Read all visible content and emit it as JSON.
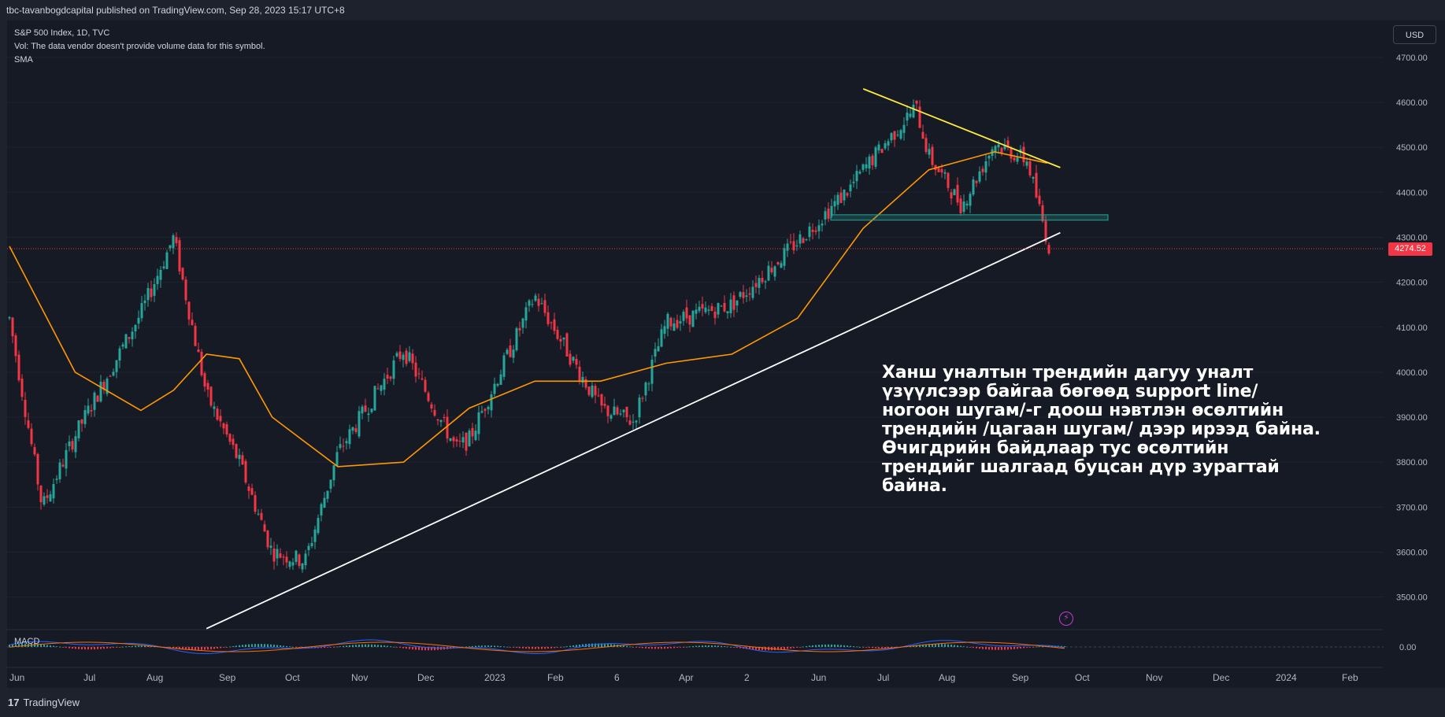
{
  "header": {
    "published": "tbc-tavanbogdcapital published on TradingView.com, Sep 28, 2023 15:17 UTC+8"
  },
  "legend": {
    "symbol": "S&P 500 Index, 1D, TVC",
    "volume_note": "Vol: The data vendor doesn't provide volume data for this symbol.",
    "indicator": "SMA"
  },
  "currency_button": "USD",
  "macd_label": "MACD",
  "last_price": "4274.52",
  "annotation": "Ханш уналтын трендийн дагуу уналт үзүүлсээр байгаа бөгөөд support line/ногоон шугам/-г доош нэвтлэн өсөлтийн трендийн /цагаан шугам/ дээр ирээд байна. Өчигдрийн байдлаар тус өсөлтийн трендийг шалгаад буцсан дүр зурагтай байна.",
  "footer": {
    "brand": "TradingView"
  },
  "colors": {
    "up": "#26a69a",
    "down": "#f23645",
    "sma": "#ff9800",
    "trend_down": "#ffeb3b",
    "trend_up": "#ffffff",
    "support": "#26a69a",
    "macd": "#2962ff",
    "signal": "#ff6d00"
  },
  "chart_data": {
    "type": "candlestick",
    "symbol": "S&P 500 Index",
    "interval": "1D",
    "ylim": [
      3450,
      4750
    ],
    "y_ticks": [
      "4700.00",
      "4600.00",
      "4500.00",
      "4400.00",
      "4300.00",
      "4200.00",
      "4100.00",
      "4000.00",
      "3900.00",
      "3800.00",
      "3700.00",
      "3600.00",
      "3500.00"
    ],
    "x_ticks": [
      "Jun",
      "Jul",
      "Aug",
      "Sep",
      "Oct",
      "Nov",
      "Dec",
      "2023",
      "Feb",
      "6",
      "Apr",
      "2",
      "Jun",
      "Jul",
      "Aug",
      "Sep",
      "Oct",
      "Nov",
      "Dec",
      "2024",
      "Feb"
    ],
    "close_path": [
      [
        "Jun 2022",
        4120
      ],
      [
        "mid Jun 2022",
        3700
      ],
      [
        "Jul 2022",
        3860
      ],
      [
        "Aug 2022",
        4130
      ],
      [
        "mid Aug 2022",
        4300
      ],
      [
        "Sep 2022",
        3950
      ],
      [
        "mid Sep 2022",
        3800
      ],
      [
        "Oct 2022",
        3600
      ],
      [
        "mid Oct 2022",
        3580
      ],
      [
        "Nov 2022",
        3820
      ],
      [
        "Dec 2022",
        4050
      ],
      [
        "late Dec 2022",
        3830
      ],
      [
        "2023",
        3850
      ],
      [
        "Feb 2023",
        4170
      ],
      [
        "Mar 2023",
        3920
      ],
      [
        "mid Mar 2023",
        3890
      ],
      [
        "Apr 2023",
        4110
      ],
      [
        "May 2023",
        4150
      ],
      [
        "Jun 2023",
        4290
      ],
      [
        "late Jun 2023",
        4410
      ],
      [
        "Jul 2023",
        4450
      ],
      [
        "late Jul 2023",
        4590
      ],
      [
        "Aug 2023",
        4480
      ],
      [
        "mid Aug 2023",
        4370
      ],
      [
        "Sep 2023",
        4510
      ],
      [
        "mid Sep 2023",
        4470
      ],
      [
        "Sep 26 2023",
        4274.52
      ]
    ],
    "sma_path": [
      [
        "Jun 2022",
        4280
      ],
      [
        "Jul 2022",
        4000
      ],
      [
        "Aug 2022",
        3915
      ],
      [
        "mid Aug 2022",
        3960
      ],
      [
        "Sep 2022",
        4040
      ],
      [
        "mid Sep 2022",
        4030
      ],
      [
        "Oct 2022",
        3900
      ],
      [
        "Nov 2022",
        3790
      ],
      [
        "Dec 2022",
        3800
      ],
      [
        "2023",
        3920
      ],
      [
        "Feb 2023",
        3980
      ],
      [
        "Mar 2023",
        3980
      ],
      [
        "Apr 2023",
        4020
      ],
      [
        "May 2023",
        4040
      ],
      [
        "Jun 2023",
        4120
      ],
      [
        "Jul 2023",
        4320
      ],
      [
        "Aug 2023",
        4450
      ],
      [
        "Sep 2023",
        4490
      ],
      [
        "late Sep 2023",
        4465
      ]
    ],
    "trendlines": [
      {
        "name": "downtrend",
        "points": [
          [
            "Jul 2023",
            4630
          ],
          [
            "Oct 2023",
            4455
          ]
        ]
      },
      {
        "name": "uptrend",
        "points": [
          [
            "Sep 2022",
            3430
          ],
          [
            "Oct 2023",
            4310
          ]
        ]
      }
    ],
    "support_zone": [
      4338,
      4350
    ],
    "last_price": 4274.52,
    "macd": {
      "label": "MACD",
      "zero_line": "0.00"
    }
  }
}
